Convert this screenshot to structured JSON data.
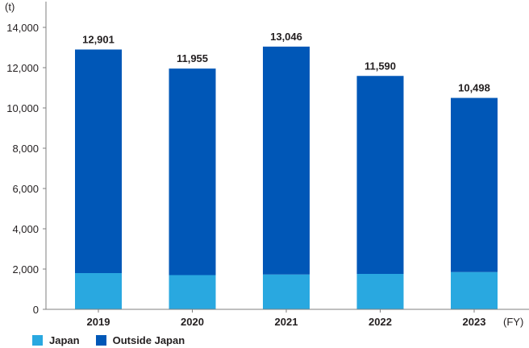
{
  "chart_data": {
    "type": "bar",
    "stacked": true,
    "categories": [
      "2019",
      "2020",
      "2021",
      "2022",
      "2023"
    ],
    "series": [
      {
        "name": "Japan",
        "color": "#29a8e0",
        "values": [
          1800,
          1700,
          1730,
          1760,
          1850
        ]
      },
      {
        "name": "Outside Japan",
        "color": "#0057b7",
        "values": [
          11101,
          10255,
          11316,
          9830,
          8648
        ]
      }
    ],
    "totals": [
      "12,901",
      "11,955",
      "13,046",
      "11,590",
      "10,498"
    ],
    "total_values": [
      12901,
      11955,
      13046,
      11590,
      10498
    ],
    "ylim": [
      0,
      14000
    ],
    "yticks": [
      0,
      2000,
      4000,
      6000,
      8000,
      10000,
      12000,
      14000
    ],
    "ytick_labels": [
      "0",
      "2,000",
      "4,000",
      "6,000",
      "8,000",
      "10,000",
      "12,000",
      "14,000"
    ],
    "y_unit": "(t)",
    "x_unit": "(FY)",
    "grid": false,
    "legend_position": "bottom-left"
  }
}
